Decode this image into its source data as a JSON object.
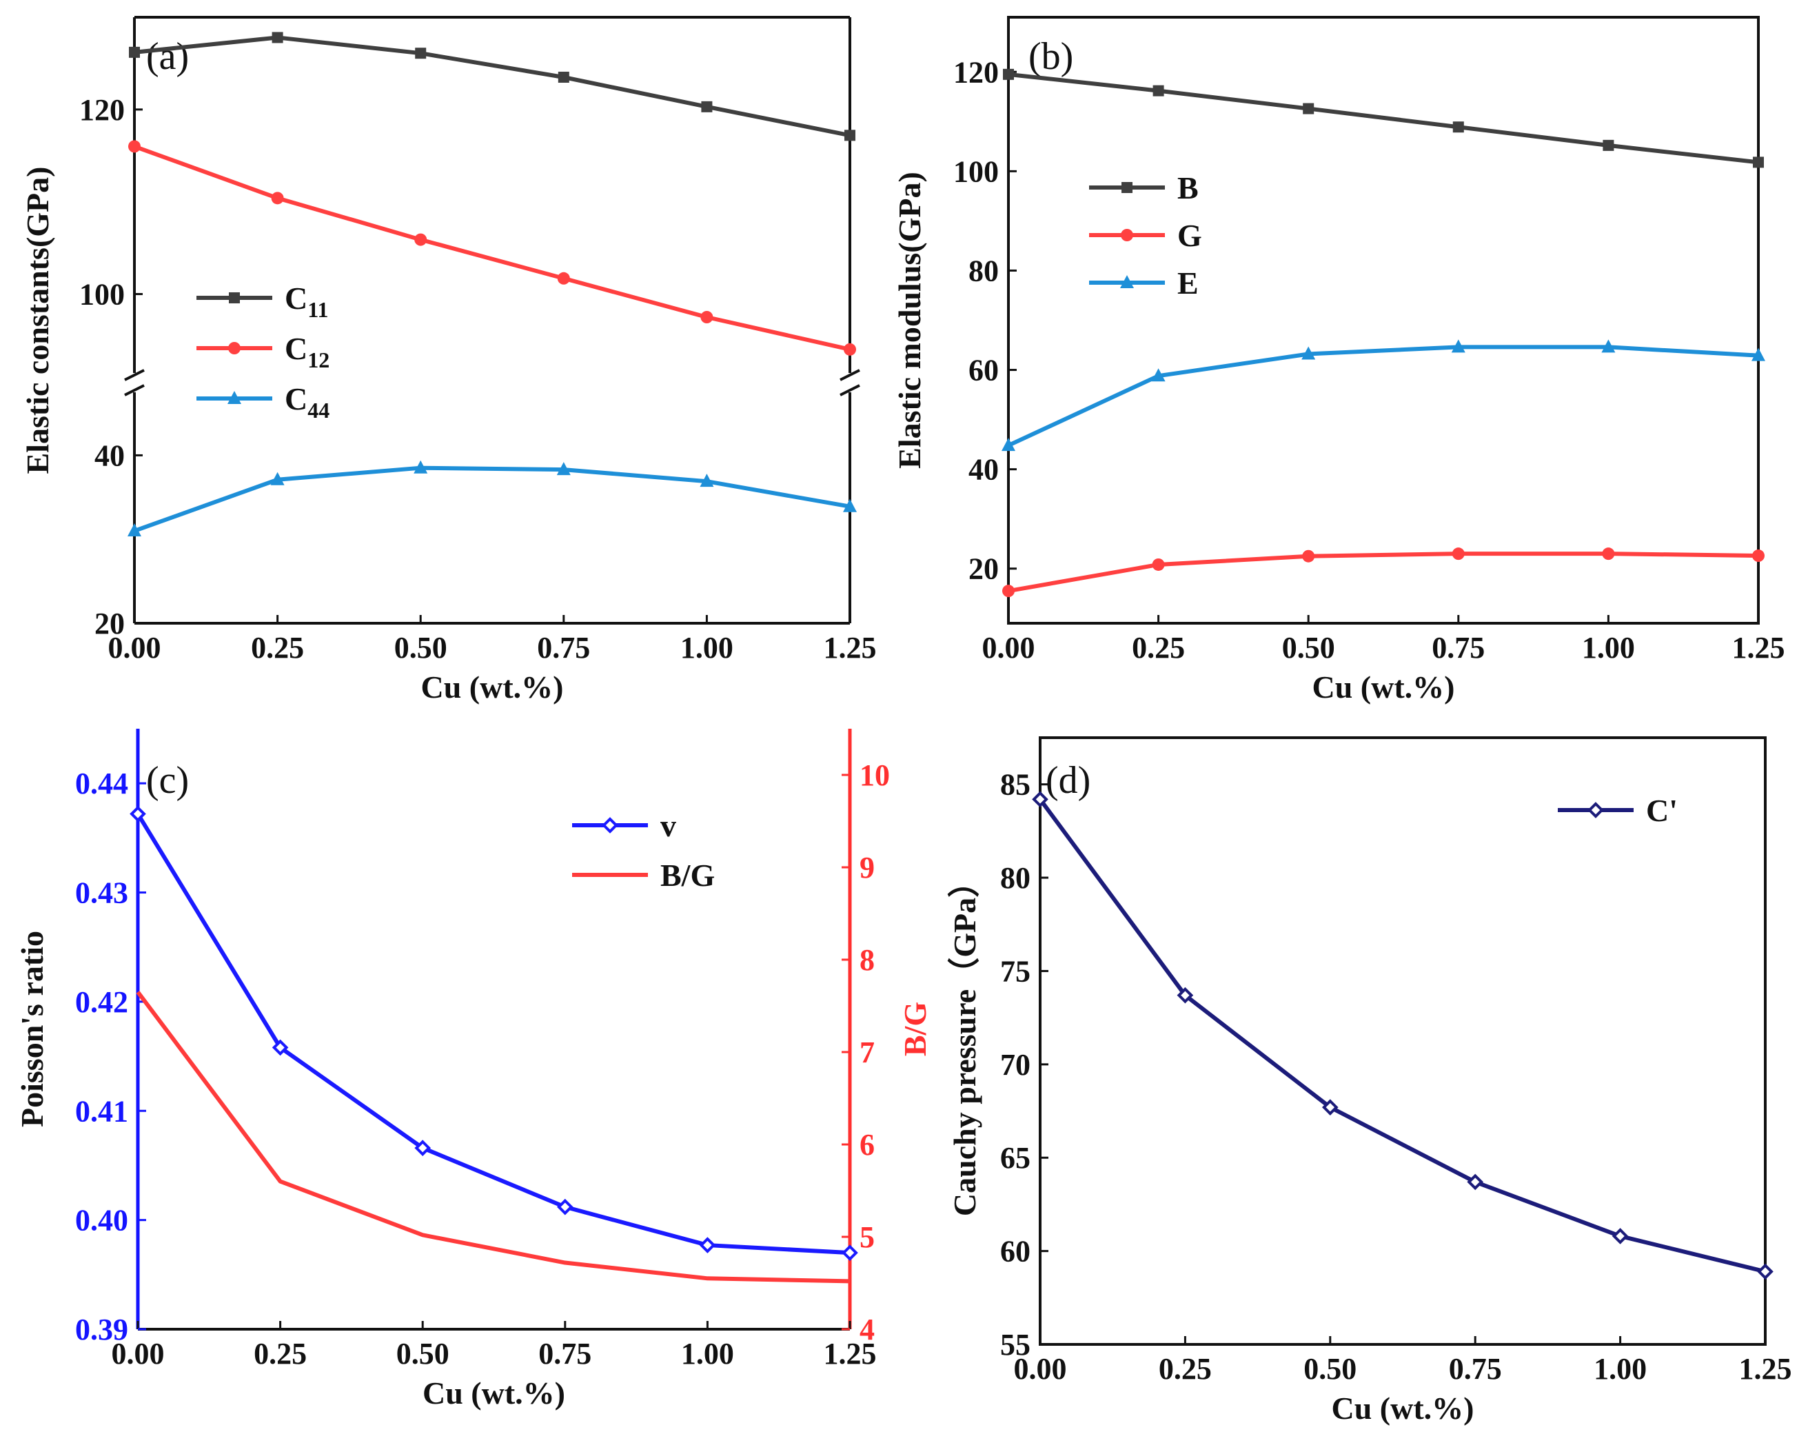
{
  "chart_data": [
    {
      "id": "a",
      "type": "line",
      "panel_label": "(a)",
      "xlabel": "Cu (wt.%)",
      "ylabel": "Elastic constants(GPa)",
      "x": [
        0,
        0.25,
        0.5,
        0.75,
        1.0,
        1.25
      ],
      "xticks": [
        "0.00",
        "0.25",
        "0.50",
        "0.75",
        "1.00",
        "1.25"
      ],
      "xlim": [
        0,
        1.25
      ],
      "axis_break": true,
      "ylim_lower": [
        20,
        48
      ],
      "ylim_upper": [
        91,
        130
      ],
      "yticks_lower": [
        20,
        40
      ],
      "yticks_upper": [
        100,
        120
      ],
      "legend_position": "center-left",
      "series": [
        {
          "name": "C",
          "sub": "11",
          "color": "#3f3f3f",
          "marker": "square",
          "values": [
            126.2,
            127.8,
            126.1,
            123.5,
            120.3,
            117.2
          ]
        },
        {
          "name": "C",
          "sub": "12",
          "color": "#ff4040",
          "marker": "circle",
          "values": [
            116,
            110.4,
            105.9,
            101.7,
            97.5,
            94.0
          ]
        },
        {
          "name": "C",
          "sub": "44",
          "color": "#1e8fd8",
          "marker": "triangle",
          "values": [
            31,
            37.1,
            38.5,
            38.3,
            36.9,
            33.9
          ]
        }
      ]
    },
    {
      "id": "b",
      "type": "line",
      "panel_label": "(b)",
      "xlabel": "Cu (wt.%)",
      "ylabel": "Elastic modulus(GPa)",
      "x": [
        0,
        0.25,
        0.5,
        0.75,
        1.0,
        1.25
      ],
      "xticks": [
        "0.00",
        "0.25",
        "0.50",
        "0.75",
        "1.00",
        "1.25"
      ],
      "xlim": [
        0,
        1.25
      ],
      "ylim": [
        9,
        131
      ],
      "yticks": [
        20,
        40,
        60,
        80,
        100,
        120
      ],
      "legend_position": "upper-left",
      "series": [
        {
          "name": "B",
          "color": "#3f3f3f",
          "marker": "square",
          "values": [
            119.5,
            116.2,
            112.6,
            108.9,
            105.2,
            101.8
          ]
        },
        {
          "name": "G",
          "color": "#ff4040",
          "marker": "circle",
          "values": [
            15.5,
            20.8,
            22.5,
            23.0,
            23.0,
            22.6
          ]
        },
        {
          "name": "E",
          "color": "#1e8fd8",
          "marker": "triangle",
          "values": [
            44.8,
            58.8,
            63.2,
            64.6,
            64.6,
            62.9
          ]
        }
      ]
    },
    {
      "id": "c",
      "type": "line",
      "panel_label": "(c)",
      "xlabel": "Cu (wt.%)",
      "ylabel": "Poisson's ratio",
      "ylabel_right": "B/G",
      "x": [
        0,
        0.25,
        0.5,
        0.75,
        1.0,
        1.25
      ],
      "xticks": [
        "0.00",
        "0.25",
        "0.50",
        "0.75",
        "1.00",
        "1.25"
      ],
      "xlim": [
        0,
        1.25
      ],
      "ylim": [
        0.39,
        0.445
      ],
      "yticks": [
        "0.39",
        "0.40",
        "0.41",
        "0.42",
        "0.43",
        "0.44"
      ],
      "ylim_right": [
        4,
        10.5
      ],
      "yticks_right": [
        "4",
        "5",
        "6",
        "7",
        "8",
        "9",
        "10"
      ],
      "left_axis_color": "#1414ff",
      "right_axis_color": "#ff3030",
      "legend_position": "top-right",
      "series": [
        {
          "name": "v",
          "axis": "left",
          "color": "#1a1aff",
          "marker": "diamond",
          "values": [
            0.4372,
            0.4158,
            0.4066,
            0.4012,
            0.3977,
            0.397
          ]
        },
        {
          "name": "B/G",
          "axis": "right",
          "color": "#ff3b3b",
          "marker": "none",
          "values": [
            7.65,
            5.6,
            5.02,
            4.72,
            4.55,
            4.52
          ]
        }
      ]
    },
    {
      "id": "d",
      "type": "line",
      "panel_label": "(d)",
      "xlabel": "Cu (wt.%)",
      "ylabel": "Cauchy pressure（GPa）",
      "x": [
        0,
        0.25,
        0.5,
        0.75,
        1.0,
        1.25
      ],
      "xticks": [
        "0.00",
        "0.25",
        "0.50",
        "0.75",
        "1.00",
        "1.25"
      ],
      "xlim": [
        0,
        1.25
      ],
      "ylim": [
        55,
        87.5
      ],
      "yticks": [
        55,
        60,
        65,
        70,
        75,
        80,
        85
      ],
      "legend_position": "top-right",
      "series": [
        {
          "name": "C'",
          "color": "#1c1c7a",
          "marker": "diamond",
          "values": [
            84.2,
            73.7,
            67.7,
            63.7,
            60.8,
            58.9
          ]
        }
      ]
    }
  ]
}
